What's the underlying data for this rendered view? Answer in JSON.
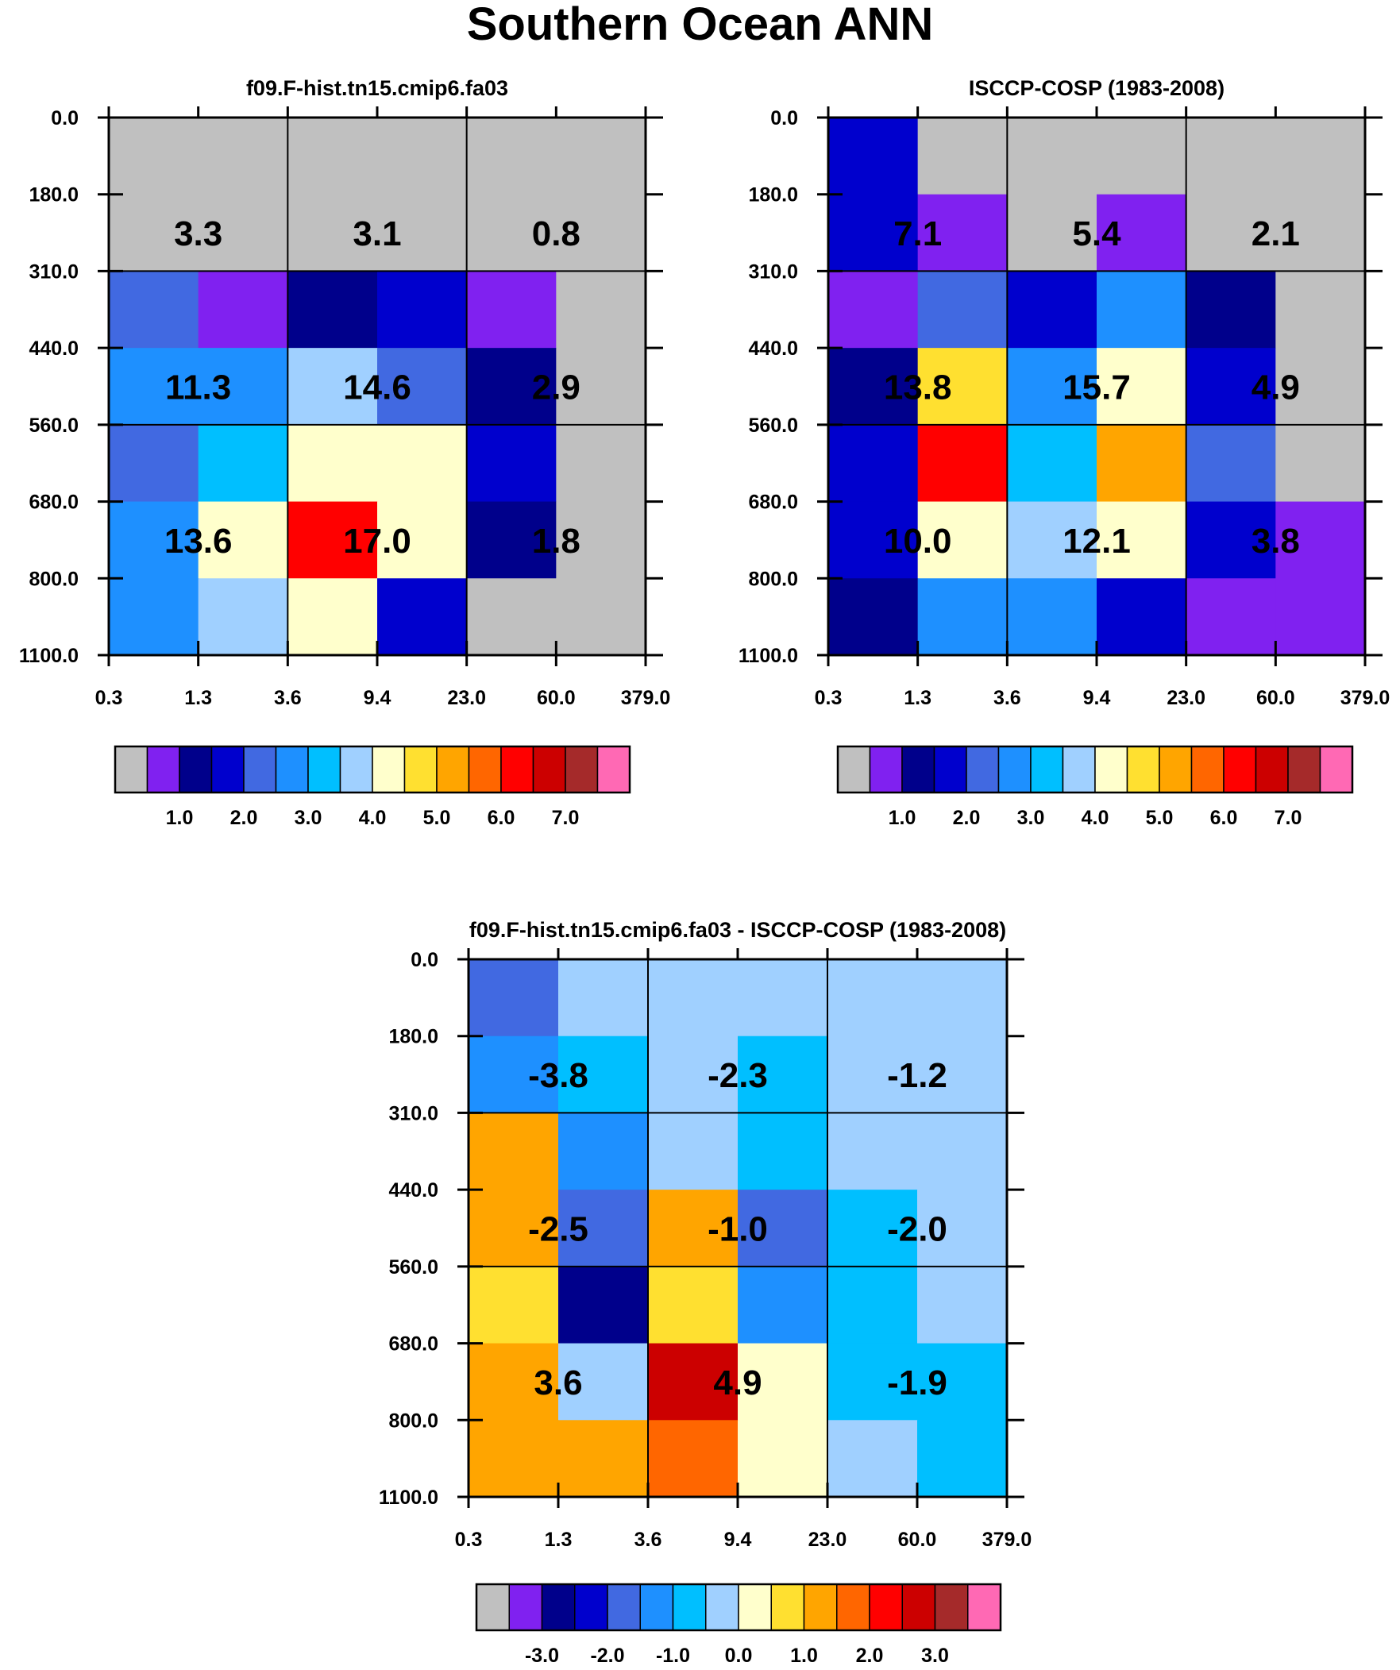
{
  "title": "Southern Ocean ANN",
  "colors": {
    "abs": [
      "#c0c0c0",
      "#8021f0",
      "#00008b",
      "#0000cd",
      "#4169e1",
      "#1e90ff",
      "#00bfff",
      "#a0d0ff",
      "#ffffcc",
      "#ffe030",
      "#ffa500",
      "#ff6600",
      "#ff0000",
      "#cc0000",
      "#a52a2a",
      "#ff69b4"
    ],
    "diff": [
      "#c0c0c0",
      "#8021f0",
      "#00008b",
      "#0000cd",
      "#4169e1",
      "#1e90ff",
      "#00bfff",
      "#a0d0ff",
      "#ffffcc",
      "#ffe030",
      "#ffa500",
      "#ff6600",
      "#ff0000",
      "#cc0000",
      "#a52a2a",
      "#ff69b4"
    ]
  },
  "chart_data": [
    {
      "type": "heatmap",
      "title": "f09.F-hist.tn15.cmip6.fa03",
      "x_tick_labels": [
        "0.3",
        "1.3",
        "3.6",
        "9.4",
        "23.0",
        "60.0",
        "379.0"
      ],
      "y_tick_labels": [
        "0.0",
        "180.0",
        "310.0",
        "440.0",
        "560.0",
        "680.0",
        "800.0",
        "1100.0"
      ],
      "cell_color_index": [
        [
          0,
          0,
          0,
          0,
          0,
          0
        ],
        [
          0,
          0,
          0,
          0,
          0,
          0
        ],
        [
          4,
          1,
          2,
          3,
          1,
          0
        ],
        [
          5,
          5,
          7,
          4,
          2,
          0
        ],
        [
          4,
          6,
          8,
          8,
          3,
          0
        ],
        [
          5,
          8,
          12,
          8,
          2,
          0
        ],
        [
          5,
          7,
          8,
          3,
          0,
          0
        ]
      ],
      "box_values": [
        [
          "3.3",
          "3.1",
          "0.8"
        ],
        [
          "11.3",
          "14.6",
          "2.9"
        ],
        [
          "13.6",
          "17.0",
          "1.8"
        ]
      ],
      "colorbar": {
        "tick_labels": [
          "1.0",
          "2.0",
          "3.0",
          "4.0",
          "5.0",
          "6.0",
          "7.0"
        ]
      }
    },
    {
      "type": "heatmap",
      "title": "ISCCP-COSP (1983-2008)",
      "x_tick_labels": [
        "0.3",
        "1.3",
        "3.6",
        "9.4",
        "23.0",
        "60.0",
        "379.0"
      ],
      "y_tick_labels": [
        "0.0",
        "180.0",
        "310.0",
        "440.0",
        "560.0",
        "680.0",
        "800.0",
        "1100.0"
      ],
      "cell_color_index": [
        [
          3,
          0,
          0,
          0,
          0,
          0
        ],
        [
          3,
          1,
          0,
          1,
          0,
          0
        ],
        [
          1,
          4,
          3,
          5,
          2,
          0
        ],
        [
          2,
          9,
          5,
          8,
          3,
          0
        ],
        [
          3,
          12,
          6,
          10,
          4,
          0
        ],
        [
          3,
          8,
          7,
          8,
          3,
          1
        ],
        [
          2,
          5,
          5,
          3,
          1,
          1
        ]
      ],
      "box_values": [
        [
          "7.1",
          "5.4",
          "2.1"
        ],
        [
          "13.8",
          "15.7",
          "4.9"
        ],
        [
          "10.0",
          "12.1",
          "3.8"
        ]
      ],
      "colorbar": {
        "tick_labels": [
          "1.0",
          "2.0",
          "3.0",
          "4.0",
          "5.0",
          "6.0",
          "7.0"
        ]
      }
    },
    {
      "type": "heatmap",
      "title": "f09.F-hist.tn15.cmip6.fa03 - ISCCP-COSP (1983-2008)",
      "x_tick_labels": [
        "0.3",
        "1.3",
        "3.6",
        "9.4",
        "23.0",
        "60.0",
        "379.0"
      ],
      "y_tick_labels": [
        "0.0",
        "180.0",
        "310.0",
        "440.0",
        "560.0",
        "680.0",
        "800.0",
        "1100.0"
      ],
      "cell_color_index": [
        [
          4,
          7,
          7,
          7,
          7,
          7
        ],
        [
          5,
          6,
          7,
          6,
          7,
          7
        ],
        [
          10,
          5,
          7,
          6,
          7,
          7
        ],
        [
          10,
          4,
          10,
          4,
          6,
          7
        ],
        [
          9,
          2,
          9,
          5,
          6,
          7
        ],
        [
          10,
          7,
          13,
          8,
          6,
          6
        ],
        [
          10,
          10,
          11,
          8,
          7,
          6
        ]
      ],
      "box_values": [
        [
          "-3.8",
          "-2.3",
          "-1.2"
        ],
        [
          "-2.5",
          "-1.0",
          "-2.0"
        ],
        [
          "3.6",
          "4.9",
          "-1.9"
        ]
      ],
      "colorbar": {
        "tick_labels": [
          "-3.0",
          "-2.0",
          "-1.0",
          "0.0",
          "1.0",
          "2.0",
          "3.0"
        ]
      }
    }
  ]
}
